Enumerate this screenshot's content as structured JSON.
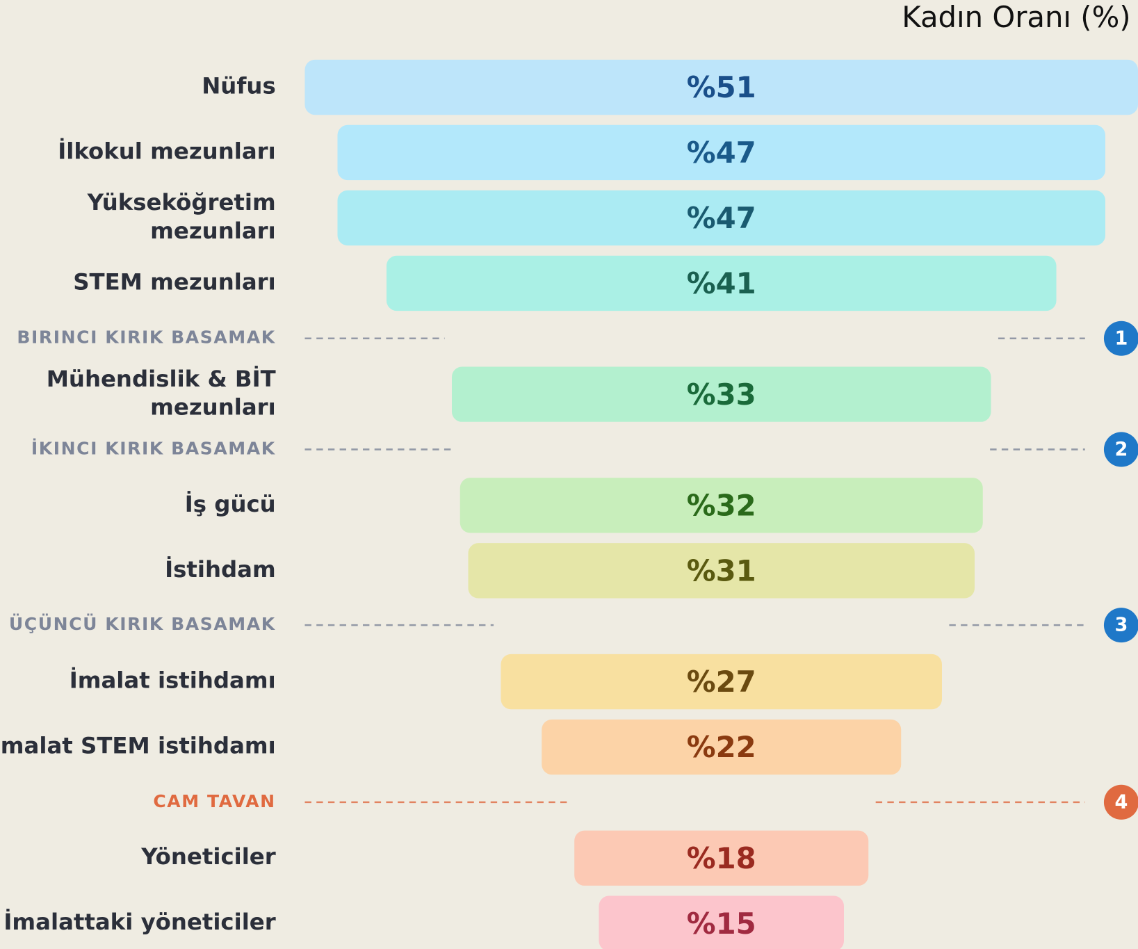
{
  "chart_data": {
    "type": "funnel",
    "title": "Kadın Oranı (%)",
    "items": [
      {
        "label": [
          "Nüfus"
        ],
        "value": 51,
        "value_label": "%51",
        "color": "#bde5fa",
        "text_color": "#1a4f8a"
      },
      {
        "label": [
          "İlkokul mezunları"
        ],
        "value": 47,
        "value_label": "%47",
        "color": "#b3e8fb",
        "text_color": "#1a5a8a"
      },
      {
        "label": [
          "Yükseköğretim",
          "mezunları"
        ],
        "value": 47,
        "value_label": "%47",
        "color": "#abebf3",
        "text_color": "#1a5a70"
      },
      {
        "label": [
          "STEM mezunları"
        ],
        "value": 41,
        "value_label": "%41",
        "color": "#aaf0e5",
        "text_color": "#1a6050"
      },
      {
        "separator": "BIRINCI KIRIK BASAMAK",
        "badge": 1,
        "color": "#7d8598",
        "badge_color": "#1f78c8"
      },
      {
        "label": [
          "Mühendislik & BİT",
          "mezunları"
        ],
        "value": 33,
        "value_label": "%33",
        "color": "#b3f0cf",
        "text_color": "#1a6a3a"
      },
      {
        "separator": "İKINCI KIRIK BASAMAK",
        "badge": 2,
        "color": "#7d8598",
        "badge_color": "#1f78c8"
      },
      {
        "label": [
          "İş gücü"
        ],
        "value": 32,
        "value_label": "%32",
        "color": "#c8eebb",
        "text_color": "#2a6a1a"
      },
      {
        "label": [
          "İstihdam"
        ],
        "value": 31,
        "value_label": "%31",
        "color": "#e5e6a8",
        "text_color": "#5a5a10"
      },
      {
        "separator": "ÜÇÜNCÜ KIRIK BASAMAK",
        "badge": 3,
        "color": "#7d8598",
        "badge_color": "#1f78c8"
      },
      {
        "label": [
          "İmalat istihdamı"
        ],
        "value": 27,
        "value_label": "%27",
        "color": "#f8e0a0",
        "text_color": "#6a4a10"
      },
      {
        "label": [
          "İmalat STEM istihdamı"
        ],
        "value": 22,
        "value_label": "%22",
        "color": "#fcd3a7",
        "text_color": "#8a3a10"
      },
      {
        "separator": "CAM TAVAN",
        "badge": 4,
        "color": "#e06a40",
        "badge_color": "#e06a40"
      },
      {
        "label": [
          "Yöneticiler"
        ],
        "value": 18,
        "value_label": "%18",
        "color": "#fcc9b4",
        "text_color": "#9a2a20"
      },
      {
        "label": [
          "İmalattaki yöneticiler"
        ],
        "value": 15,
        "value_label": "%15",
        "color": "#fcc5cc",
        "text_color": "#a02a40"
      }
    ]
  }
}
